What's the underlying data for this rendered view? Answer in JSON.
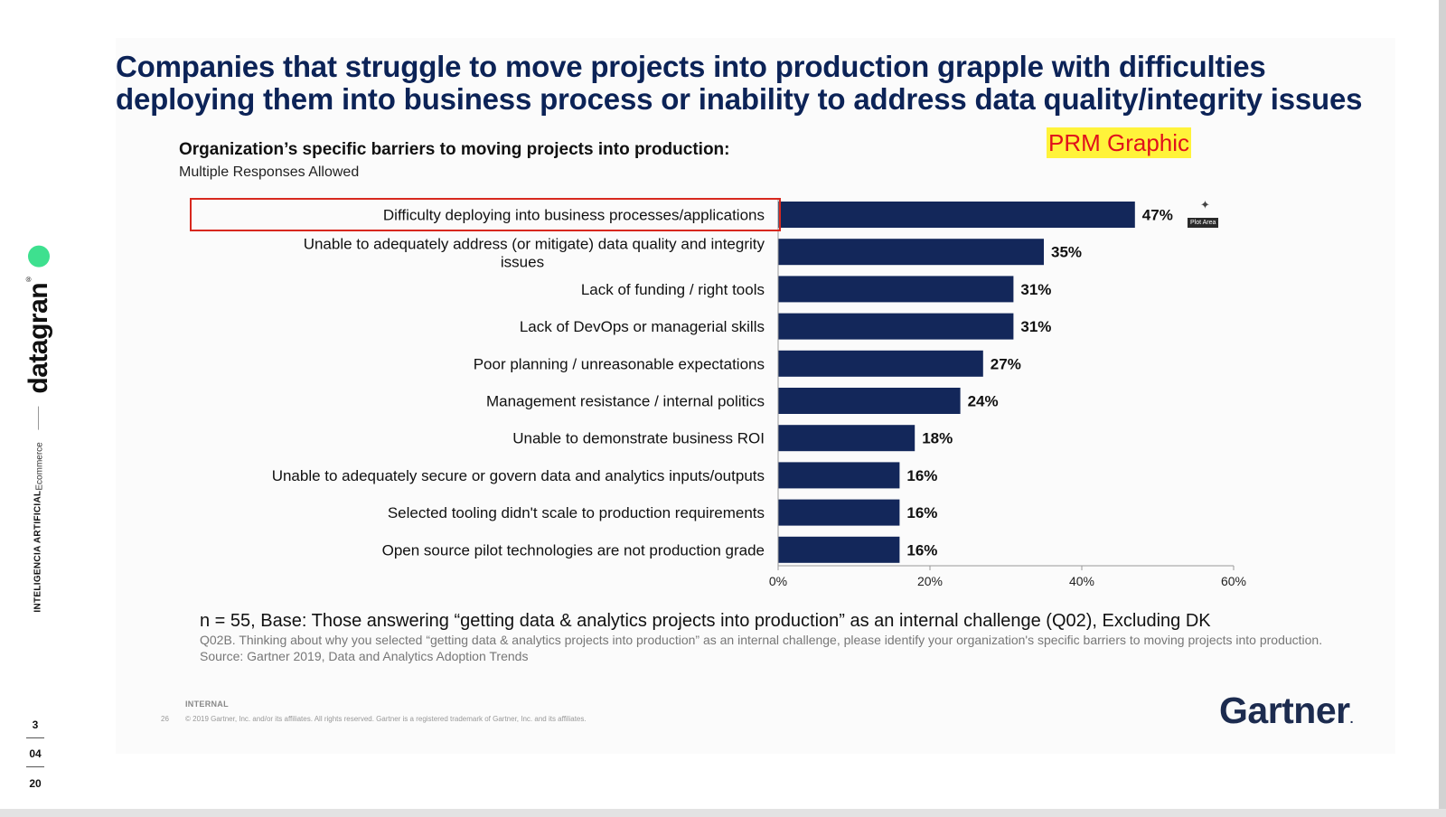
{
  "sidebar": {
    "vertical_title": "INTELIGENCIA ARTIFICIAL",
    "vertical_subtitle": "Ecommerce",
    "logo_text": "datagran",
    "logo_mark": "®",
    "date_day": "3",
    "date_month": "04",
    "date_year": "20",
    "accent_color": "#3ee08f"
  },
  "slide": {
    "title_line1": "Companies that struggle to move projects into production grapple with difficulties",
    "title_line2": "deploying them into business process or inability to address data quality/integrity issues",
    "chart_heading": "Organization’s specific barriers to moving projects into production:",
    "chart_subheading": "Multiple Responses Allowed",
    "badge_text": "PRM Graphic",
    "plot_area_tag": "Plot Area",
    "footnote_main": "n = 55, Base: Those answering “getting data & analytics projects into production” as an internal challenge (Q02), Excluding DK",
    "footnote_question": "Q02B. Thinking about why you selected “getting data & analytics projects into production” as an internal challenge, please identify your organization's specific barriers to moving projects into production.",
    "footnote_source": "Source: Gartner 2019, Data and Analytics Adoption Trends",
    "internal_label": "INTERNAL",
    "slide_number": "26",
    "copyright": "© 2019 Gartner, Inc. and/or its affiliates. All rights reserved. Gartner is a registered trademark of Gartner, Inc. and its affiliates.",
    "brand_logo": "Gartner",
    "brand_dot": ".",
    "title_color": "#0c2357",
    "highlight_color": "#d8281e"
  },
  "chart_data": {
    "type": "bar",
    "orientation": "horizontal",
    "categories": [
      [
        "Difficulty deploying into business processes/applications"
      ],
      [
        "Unable to adequately address (or mitigate) data quality and integrity",
        "issues"
      ],
      [
        "Lack of funding / right tools"
      ],
      [
        "Lack of DevOps or managerial skills"
      ],
      [
        "Poor planning / unreasonable expectations"
      ],
      [
        "Management resistance / internal politics"
      ],
      [
        "Unable to demonstrate business ROI"
      ],
      [
        "Unable to adequately secure or govern data and analytics inputs/outputs"
      ],
      [
        "Selected tooling didn't scale to production requirements"
      ],
      [
        "Open source pilot technologies are not production grade"
      ]
    ],
    "values": [
      47,
      35,
      31,
      31,
      27,
      24,
      18,
      16,
      16,
      16
    ],
    "value_labels": [
      "47%",
      "35%",
      "31%",
      "31%",
      "27%",
      "24%",
      "18%",
      "16%",
      "16%",
      "16%"
    ],
    "xlim": [
      0,
      60
    ],
    "ticks": [
      0,
      20,
      40,
      60
    ],
    "tick_labels": [
      "0%",
      "20%",
      "40%",
      "60%"
    ],
    "bar_color": "#13275a",
    "grid": false
  }
}
